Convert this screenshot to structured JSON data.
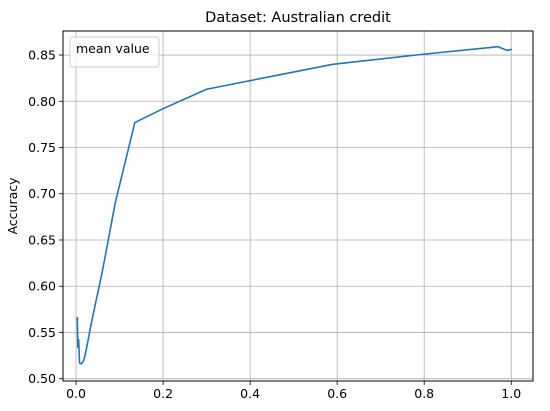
{
  "chart_data": {
    "type": "line",
    "title": "Dataset: Australian credit",
    "xlabel": "",
    "ylabel": "Accuracy",
    "xlim": [
      -0.03,
      1.05
    ],
    "ylim": [
      0.4975,
      0.876
    ],
    "xticks": [
      0.0,
      0.2,
      0.4,
      0.6,
      0.8,
      1.0
    ],
    "xtick_labels": [
      "0.0",
      "0.2",
      "0.4",
      "0.6",
      "0.8",
      "1.0"
    ],
    "yticks": [
      0.5,
      0.55,
      0.6,
      0.65,
      0.7,
      0.75,
      0.8,
      0.85
    ],
    "ytick_labels": [
      "0.50",
      "0.55",
      "0.60",
      "0.65",
      "0.70",
      "0.75",
      "0.80",
      "0.85"
    ],
    "grid": true,
    "legend": {
      "position": "top-left",
      "entries": [
        "mean value"
      ],
      "show_line": false
    },
    "series": [
      {
        "name": "mean value",
        "color": "#1f77b4",
        "x": [
          0.003,
          0.004,
          0.006,
          0.008,
          0.012,
          0.018,
          0.025,
          0.035,
          0.06,
          0.09,
          0.135,
          0.2,
          0.3,
          0.45,
          0.59,
          0.8,
          0.97,
          0.99,
          1.0
        ],
        "y": [
          0.566,
          0.534,
          0.542,
          0.517,
          0.516,
          0.52,
          0.535,
          0.56,
          0.615,
          0.69,
          0.777,
          0.792,
          0.813,
          0.827,
          0.84,
          0.851,
          0.859,
          0.855,
          0.856
        ]
      }
    ]
  }
}
